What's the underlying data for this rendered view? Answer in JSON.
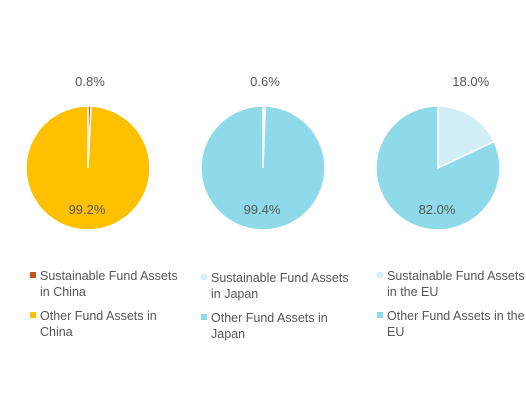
{
  "chart_data": [
    {
      "type": "pie",
      "slices": [
        {
          "label": "Sustainable Fund Assets in China",
          "value": 0.8,
          "display": "0.8%",
          "color": "#c0571a"
        },
        {
          "label": "Other Fund Assets in China",
          "value": 99.2,
          "display": "99.2%",
          "color": "#ffc000"
        }
      ]
    },
    {
      "type": "pie",
      "slices": [
        {
          "label": "Sustainable Fund Assets in Japan",
          "value": 0.6,
          "display": "0.6%",
          "color": "#d2eff7"
        },
        {
          "label": "Other Fund Assets in Japan",
          "value": 99.4,
          "display": "99.4%",
          "color": "#8ed9ea"
        }
      ]
    },
    {
      "type": "pie",
      "slices": [
        {
          "label": "Sustainable Fund Assets in the EU",
          "value": 18.0,
          "display": "18.0%",
          "color": "#d2eff7"
        },
        {
          "label": "Other Fund Assets in the EU",
          "value": 82.0,
          "display": "82.0%",
          "color": "#8ed9ea"
        }
      ]
    }
  ]
}
